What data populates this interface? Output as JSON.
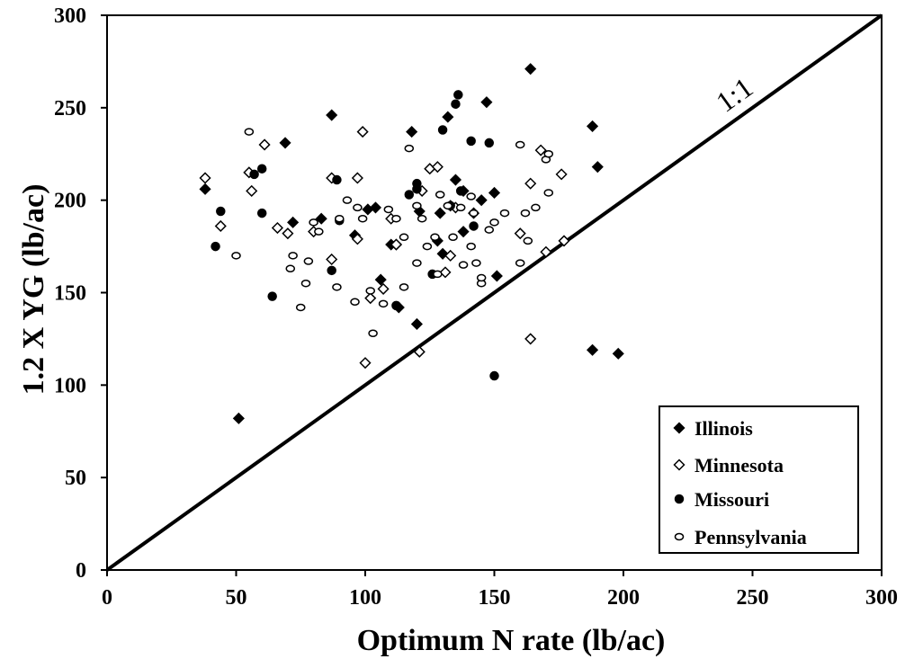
{
  "chart_data": {
    "type": "scatter",
    "title": "",
    "xlabel": "Optimum N rate (lb/ac)",
    "ylabel": "1.2 X YG  (lb/ac)",
    "xlim": [
      0,
      300
    ],
    "ylim": [
      0,
      300
    ],
    "x_ticks": [
      "0",
      "50",
      "100",
      "150",
      "200",
      "250",
      "300"
    ],
    "y_ticks": [
      "0",
      "50",
      "100",
      "150",
      "200",
      "250",
      "300"
    ],
    "grid": false,
    "legend_position": "bottom-right",
    "reference_line": {
      "label": "1:1",
      "from": [
        0,
        0
      ],
      "to": [
        300,
        300
      ]
    },
    "series": [
      {
        "name": "Illinois",
        "marker": "filled-diamond",
        "points": [
          [
            38,
            206
          ],
          [
            51,
            82
          ],
          [
            69,
            231
          ],
          [
            72,
            188
          ],
          [
            83,
            190
          ],
          [
            87,
            246
          ],
          [
            96,
            181
          ],
          [
            101,
            195
          ],
          [
            106,
            157
          ],
          [
            110,
            176
          ],
          [
            113,
            142
          ],
          [
            118,
            237
          ],
          [
            120,
            133
          ],
          [
            121,
            194
          ],
          [
            129,
            193
          ],
          [
            130,
            171
          ],
          [
            132,
            245
          ],
          [
            135,
            211
          ],
          [
            138,
            183
          ],
          [
            138,
            205
          ],
          [
            145,
            200
          ],
          [
            147,
            253
          ],
          [
            150,
            204
          ],
          [
            151,
            159
          ],
          [
            164,
            271
          ],
          [
            188,
            119
          ],
          [
            188,
            240
          ],
          [
            190,
            218
          ],
          [
            198,
            117
          ],
          [
            133,
            197
          ],
          [
            104,
            196
          ],
          [
            128,
            178
          ]
        ]
      },
      {
        "name": "Minnesota",
        "marker": "open-diamond",
        "points": [
          [
            38,
            212
          ],
          [
            44,
            186
          ],
          [
            55,
            215
          ],
          [
            56,
            205
          ],
          [
            61,
            230
          ],
          [
            66,
            185
          ],
          [
            70,
            182
          ],
          [
            80,
            183
          ],
          [
            87,
            168
          ],
          [
            87,
            212
          ],
          [
            97,
            212
          ],
          [
            97,
            179
          ],
          [
            99,
            237
          ],
          [
            100,
            112
          ],
          [
            102,
            147
          ],
          [
            107,
            152
          ],
          [
            110,
            190
          ],
          [
            112,
            176
          ],
          [
            121,
            118
          ],
          [
            122,
            205
          ],
          [
            125,
            217
          ],
          [
            128,
            218
          ],
          [
            131,
            161
          ],
          [
            133,
            170
          ],
          [
            135,
            196
          ],
          [
            142,
            193
          ],
          [
            160,
            182
          ],
          [
            164,
            209
          ],
          [
            164,
            125
          ],
          [
            168,
            227
          ],
          [
            170,
            172
          ],
          [
            176,
            214
          ],
          [
            177,
            178
          ],
          [
            112,
            176
          ]
        ]
      },
      {
        "name": "Missouri",
        "marker": "filled-circle",
        "points": [
          [
            42,
            175
          ],
          [
            44,
            194
          ],
          [
            57,
            214
          ],
          [
            60,
            193
          ],
          [
            60,
            217
          ],
          [
            64,
            148
          ],
          [
            87,
            162
          ],
          [
            89,
            211
          ],
          [
            90,
            189
          ],
          [
            112,
            143
          ],
          [
            117,
            203
          ],
          [
            120,
            209
          ],
          [
            120,
            206
          ],
          [
            126,
            160
          ],
          [
            130,
            238
          ],
          [
            133,
            197
          ],
          [
            135,
            252
          ],
          [
            136,
            257
          ],
          [
            137,
            205
          ],
          [
            141,
            232
          ],
          [
            142,
            186
          ],
          [
            148,
            231
          ],
          [
            150,
            105
          ]
        ]
      },
      {
        "name": "Pennsylvania",
        "marker": "open-circle",
        "points": [
          [
            50,
            170
          ],
          [
            55,
            237
          ],
          [
            71,
            163
          ],
          [
            72,
            170
          ],
          [
            75,
            142
          ],
          [
            77,
            155
          ],
          [
            78,
            167
          ],
          [
            80,
            188
          ],
          [
            82,
            183
          ],
          [
            89,
            153
          ],
          [
            90,
            190
          ],
          [
            93,
            200
          ],
          [
            96,
            145
          ],
          [
            97,
            196
          ],
          [
            99,
            190
          ],
          [
            102,
            151
          ],
          [
            103,
            128
          ],
          [
            107,
            144
          ],
          [
            109,
            195
          ],
          [
            112,
            190
          ],
          [
            115,
            180
          ],
          [
            115,
            153
          ],
          [
            117,
            228
          ],
          [
            120,
            166
          ],
          [
            120,
            197
          ],
          [
            122,
            190
          ],
          [
            124,
            175
          ],
          [
            127,
            180
          ],
          [
            128,
            160
          ],
          [
            129,
            203
          ],
          [
            132,
            197
          ],
          [
            134,
            180
          ],
          [
            137,
            196
          ],
          [
            138,
            165
          ],
          [
            141,
            175
          ],
          [
            141,
            202
          ],
          [
            143,
            166
          ],
          [
            145,
            155
          ],
          [
            145,
            158
          ],
          [
            148,
            184
          ],
          [
            150,
            188
          ],
          [
            154,
            193
          ],
          [
            160,
            230
          ],
          [
            160,
            166
          ],
          [
            162,
            193
          ],
          [
            163,
            178
          ],
          [
            166,
            196
          ],
          [
            170,
            222
          ],
          [
            171,
            225
          ],
          [
            171,
            204
          ],
          [
            142,
            193
          ]
        ]
      }
    ]
  },
  "legend": {
    "items": [
      {
        "label": "Illinois"
      },
      {
        "label": "Minnesota"
      },
      {
        "label": "Missouri"
      },
      {
        "label": "Pennsylvania"
      }
    ]
  }
}
